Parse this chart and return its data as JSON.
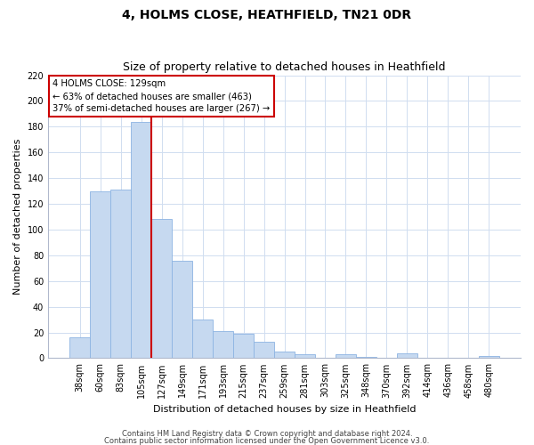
{
  "title": "4, HOLMS CLOSE, HEATHFIELD, TN21 0DR",
  "subtitle": "Size of property relative to detached houses in Heathfield",
  "xlabel": "Distribution of detached houses by size in Heathfield",
  "ylabel": "Number of detached properties",
  "bar_labels": [
    "38sqm",
    "60sqm",
    "83sqm",
    "105sqm",
    "127sqm",
    "149sqm",
    "171sqm",
    "193sqm",
    "215sqm",
    "237sqm",
    "259sqm",
    "281sqm",
    "303sqm",
    "325sqm",
    "348sqm",
    "370sqm",
    "392sqm",
    "414sqm",
    "436sqm",
    "458sqm",
    "480sqm"
  ],
  "bar_values": [
    16,
    130,
    131,
    184,
    108,
    76,
    30,
    21,
    19,
    13,
    5,
    3,
    0,
    3,
    1,
    0,
    4,
    0,
    0,
    0,
    2
  ],
  "bar_color": "#c6d9f0",
  "bar_edge_color": "#8db4e2",
  "vline_index": 3.5,
  "vline_color": "#cc0000",
  "ylim": [
    0,
    220
  ],
  "yticks": [
    0,
    20,
    40,
    60,
    80,
    100,
    120,
    140,
    160,
    180,
    200,
    220
  ],
  "annotation_title": "4 HOLMS CLOSE: 129sqm",
  "annotation_line1": "← 63% of detached houses are smaller (463)",
  "annotation_line2": "37% of semi-detached houses are larger (267) →",
  "footer1": "Contains HM Land Registry data © Crown copyright and database right 2024.",
  "footer2": "Contains public sector information licensed under the Open Government Licence v3.0.",
  "grid_color": "#d0ddf0",
  "background_color": "#ffffff",
  "title_fontsize": 10,
  "subtitle_fontsize": 9,
  "axis_label_fontsize": 8,
  "tick_fontsize": 7,
  "footer_fontsize": 6,
  "ylabel_fontsize": 8
}
